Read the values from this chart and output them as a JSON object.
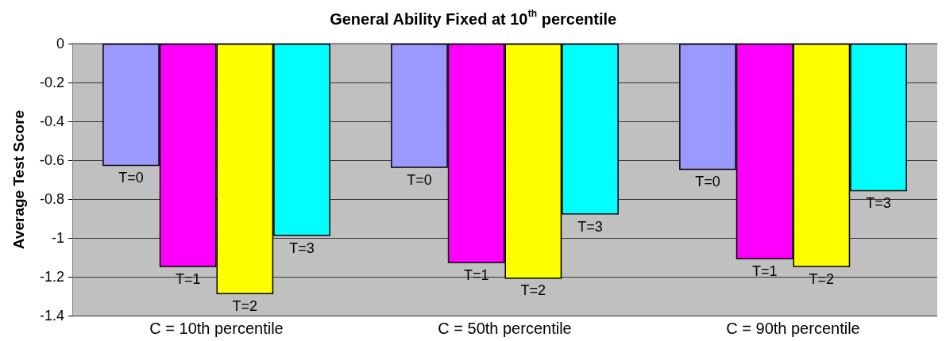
{
  "chart_data": {
    "type": "bar",
    "title": "General Ability Fixed at 10$^{th}$ percentile",
    "ylabel": "Average Test Score",
    "categories": [
      "C = 10th percentile",
      "C = 50th percentile",
      "C = 90th percentile"
    ],
    "series": [
      {
        "name": "T=0",
        "color": "#9999ff",
        "values": [
          -0.63,
          -0.64,
          -0.65
        ]
      },
      {
        "name": "T=1",
        "color": "#ff00ff",
        "values": [
          -1.15,
          -1.13,
          -1.11
        ]
      },
      {
        "name": "T=2",
        "color": "#ffff00",
        "values": [
          -1.29,
          -1.21,
          -1.15
        ]
      },
      {
        "name": "T=3",
        "color": "#00ffff",
        "values": [
          -0.99,
          -0.88,
          -0.76
        ]
      }
    ],
    "ylim": [
      -1.4,
      0
    ],
    "yticks": [
      -1.4,
      -1.2,
      -1,
      -0.8,
      -0.6,
      -0.4,
      -0.2,
      0
    ],
    "grid": "y",
    "legend": false
  }
}
